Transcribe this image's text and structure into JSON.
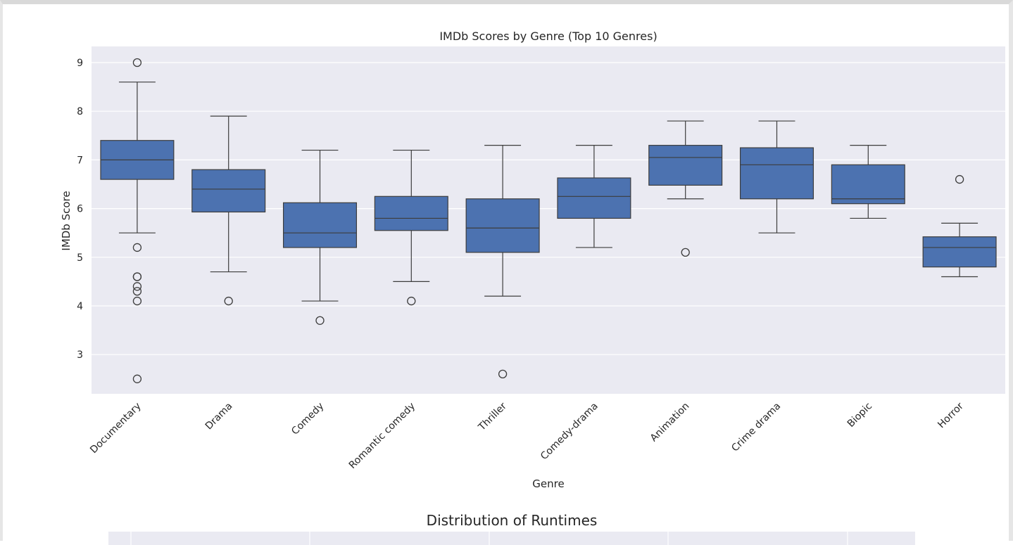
{
  "chart_data": {
    "type": "box",
    "title": "IMDb Scores by Genre (Top 10 Genres)",
    "xlabel": "Genre",
    "ylabel": "IMDb Score",
    "ylim": [
      2.2,
      9.35
    ],
    "yticks": [
      3,
      4,
      5,
      6,
      7,
      8,
      9
    ],
    "grid": true,
    "box_color": "#4c72b0",
    "categories": [
      "Documentary",
      "Drama",
      "Comedy",
      "Romantic comedy",
      "Thriller",
      "Comedy-drama",
      "Animation",
      "Crime drama",
      "Biopic",
      "Horror"
    ],
    "boxes": [
      {
        "category": "Documentary",
        "whisker_low": 5.5,
        "q1": 6.6,
        "median": 7.0,
        "q3": 7.4,
        "whisker_high": 8.6,
        "outliers": [
          9.0,
          5.2,
          4.6,
          4.6,
          4.4,
          4.3,
          4.1,
          2.5
        ]
      },
      {
        "category": "Drama",
        "whisker_low": 4.7,
        "q1": 5.93,
        "median": 6.4,
        "q3": 6.8,
        "whisker_high": 7.9,
        "outliers": [
          4.1
        ]
      },
      {
        "category": "Comedy",
        "whisker_low": 4.1,
        "q1": 5.2,
        "median": 5.5,
        "q3": 6.12,
        "whisker_high": 7.2,
        "outliers": [
          3.7
        ]
      },
      {
        "category": "Romantic comedy",
        "whisker_low": 4.5,
        "q1": 5.55,
        "median": 5.8,
        "q3": 6.25,
        "whisker_high": 7.2,
        "outliers": [
          4.1
        ]
      },
      {
        "category": "Thriller",
        "whisker_low": 4.2,
        "q1": 5.1,
        "median": 5.6,
        "q3": 6.2,
        "whisker_high": 7.3,
        "outliers": [
          2.6
        ]
      },
      {
        "category": "Comedy-drama",
        "whisker_low": 5.2,
        "q1": 5.8,
        "median": 6.25,
        "q3": 6.63,
        "whisker_high": 7.3,
        "outliers": []
      },
      {
        "category": "Animation",
        "whisker_low": 6.2,
        "q1": 6.48,
        "median": 7.05,
        "q3": 7.3,
        "whisker_high": 7.8,
        "outliers": [
          5.1
        ]
      },
      {
        "category": "Crime drama",
        "whisker_low": 5.5,
        "q1": 6.2,
        "median": 6.9,
        "q3": 7.25,
        "whisker_high": 7.8,
        "outliers": []
      },
      {
        "category": "Biopic",
        "whisker_low": 5.8,
        "q1": 6.1,
        "median": 6.2,
        "q3": 6.9,
        "whisker_high": 7.3,
        "outliers": []
      },
      {
        "category": "Horror",
        "whisker_low": 4.6,
        "q1": 4.8,
        "median": 5.2,
        "q3": 5.42,
        "whisker_high": 5.7,
        "outliers": [
          6.6
        ]
      }
    ]
  },
  "next_chart": {
    "title": "Distribution of Runtimes"
  }
}
